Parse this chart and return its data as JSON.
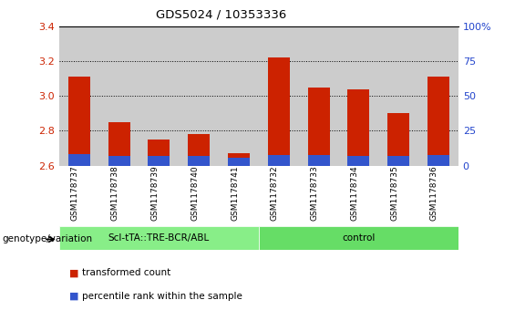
{
  "title": "GDS5024 / 10353336",
  "samples": [
    "GSM1178737",
    "GSM1178738",
    "GSM1178739",
    "GSM1178740",
    "GSM1178741",
    "GSM1178732",
    "GSM1178733",
    "GSM1178734",
    "GSM1178735",
    "GSM1178736"
  ],
  "red_values": [
    3.11,
    2.85,
    2.75,
    2.78,
    2.67,
    3.22,
    3.05,
    3.04,
    2.9,
    3.11
  ],
  "blue_values": [
    2.665,
    2.655,
    2.655,
    2.655,
    2.645,
    2.66,
    2.658,
    2.655,
    2.655,
    2.66
  ],
  "base": 2.6,
  "ylim_left": [
    2.6,
    3.4
  ],
  "ylim_right": [
    0,
    100
  ],
  "yticks_left": [
    2.6,
    2.8,
    3.0,
    3.2,
    3.4
  ],
  "yticks_right": [
    0,
    25,
    50,
    75,
    100
  ],
  "ytick_labels_right": [
    "0",
    "25",
    "50",
    "75",
    "100%"
  ],
  "group1_label": "Scl-tTA::TRE-BCR/ABL",
  "group2_label": "control",
  "bar_color_red": "#cc2200",
  "bar_color_blue": "#3355cc",
  "group1_color": "#88ee88",
  "group2_color": "#66dd66",
  "col_bg_color": "#cccccc",
  "left_axis_color": "#cc2200",
  "right_axis_color": "#2244cc",
  "legend_red": "transformed count",
  "legend_blue": "percentile rank within the sample",
  "genotype_label": "genotype/variation"
}
